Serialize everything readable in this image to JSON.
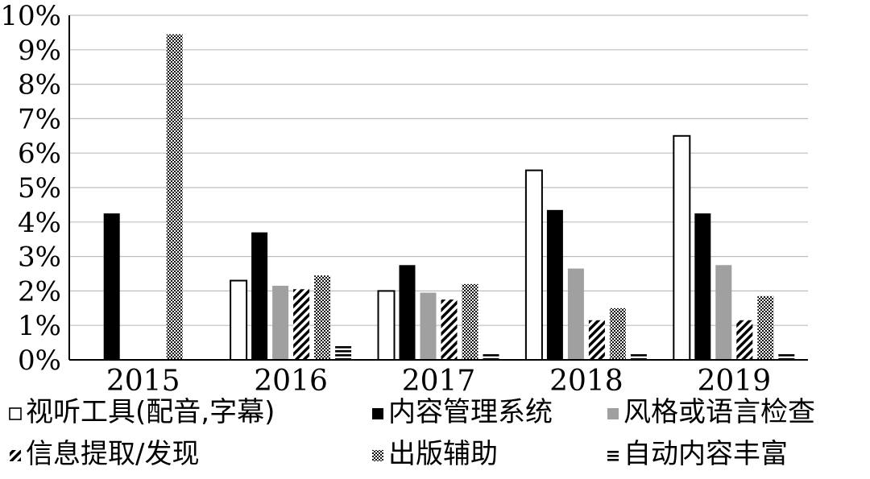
{
  "chart_data": {
    "type": "bar",
    "categories": [
      "2015",
      "2016",
      "2017",
      "2018",
      "2019"
    ],
    "ylim": [
      0,
      10
    ],
    "y_ticks": [
      "0%",
      "1%",
      "2%",
      "3%",
      "4%",
      "5%",
      "6%",
      "7%",
      "8%",
      "9%",
      "10%"
    ],
    "grid": true,
    "legend_position": "bottom",
    "series": [
      {
        "name": "视听工具(配音,字幕)",
        "pattern": "white",
        "values": [
          null,
          2.3,
          2.0,
          5.5,
          6.5
        ]
      },
      {
        "name": "内容管理系统",
        "pattern": "black",
        "values": [
          4.25,
          3.7,
          2.75,
          4.35,
          4.25
        ]
      },
      {
        "name": "风格或语言检查",
        "pattern": "gray",
        "values": [
          null,
          2.15,
          1.95,
          2.65,
          2.75
        ]
      },
      {
        "name": "信息提取/发现",
        "pattern": "diagonal",
        "values": [
          null,
          2.05,
          1.75,
          1.15,
          1.15
        ]
      },
      {
        "name": "出版辅助",
        "pattern": "dotted",
        "values": [
          9.45,
          2.45,
          2.2,
          1.5,
          1.85
        ]
      },
      {
        "name": "自动内容丰富",
        "pattern": "hlines",
        "values": [
          null,
          0.4,
          0.2,
          0.2,
          0.2
        ]
      }
    ],
    "colors": {
      "black": "#000000",
      "gray": "#a0a0a0",
      "grid": "#bdbdbd"
    }
  }
}
